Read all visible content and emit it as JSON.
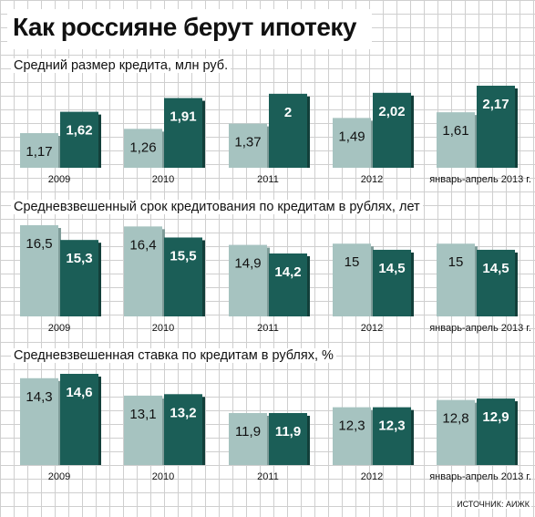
{
  "title": "Как россияне берут ипотеку",
  "colors": {
    "light": "#a6c3c0",
    "dark": "#1b5e57"
  },
  "source": "ИСТОЧНИК: АИЖК",
  "chart_data": [
    {
      "type": "bar",
      "title": "Средний размер кредита, млн руб.",
      "categories": [
        "2009",
        "2010",
        "2011",
        "2012",
        "январь-апрель 2013 г."
      ],
      "series": [
        {
          "values": [
            1.17,
            1.26,
            1.37,
            1.49,
            1.61
          ],
          "labels": [
            "1,17",
            "1,26",
            "1,37",
            "1,49",
            "1,61"
          ]
        },
        {
          "values": [
            1.62,
            1.91,
            2.0,
            2.02,
            2.17
          ],
          "labels": [
            "1,62",
            "1,91",
            "2",
            "2,02",
            "2,17"
          ]
        }
      ]
    },
    {
      "type": "bar",
      "title": "Средневзвешенный срок кредитования по кредитам в рублях, лет",
      "categories": [
        "2009",
        "2010",
        "2011",
        "2012",
        "январь-апрель 2013 г."
      ],
      "series": [
        {
          "values": [
            16.5,
            16.4,
            14.9,
            15,
            15
          ],
          "labels": [
            "16,5",
            "16,4",
            "14,9",
            "15",
            "15"
          ]
        },
        {
          "values": [
            15.3,
            15.5,
            14.2,
            14.5,
            14.5
          ],
          "labels": [
            "15,3",
            "15,5",
            "14,2",
            "14,5",
            "14,5"
          ]
        }
      ]
    },
    {
      "type": "bar",
      "title": "Средневзвешенная ставка по кредитам в рублях, %",
      "categories": [
        "2009",
        "2010",
        "2011",
        "2012",
        "январь-апрель 2013 г."
      ],
      "series": [
        {
          "values": [
            14.3,
            13.1,
            11.9,
            12.3,
            12.8
          ],
          "labels": [
            "14,3",
            "13,1",
            "11,9",
            "12,3",
            "12,8"
          ]
        },
        {
          "values": [
            14.6,
            13.2,
            11.9,
            12.3,
            12.9
          ],
          "labels": [
            "14,6",
            "13,2",
            "11,9",
            "12,3",
            "12,9"
          ]
        }
      ]
    }
  ]
}
